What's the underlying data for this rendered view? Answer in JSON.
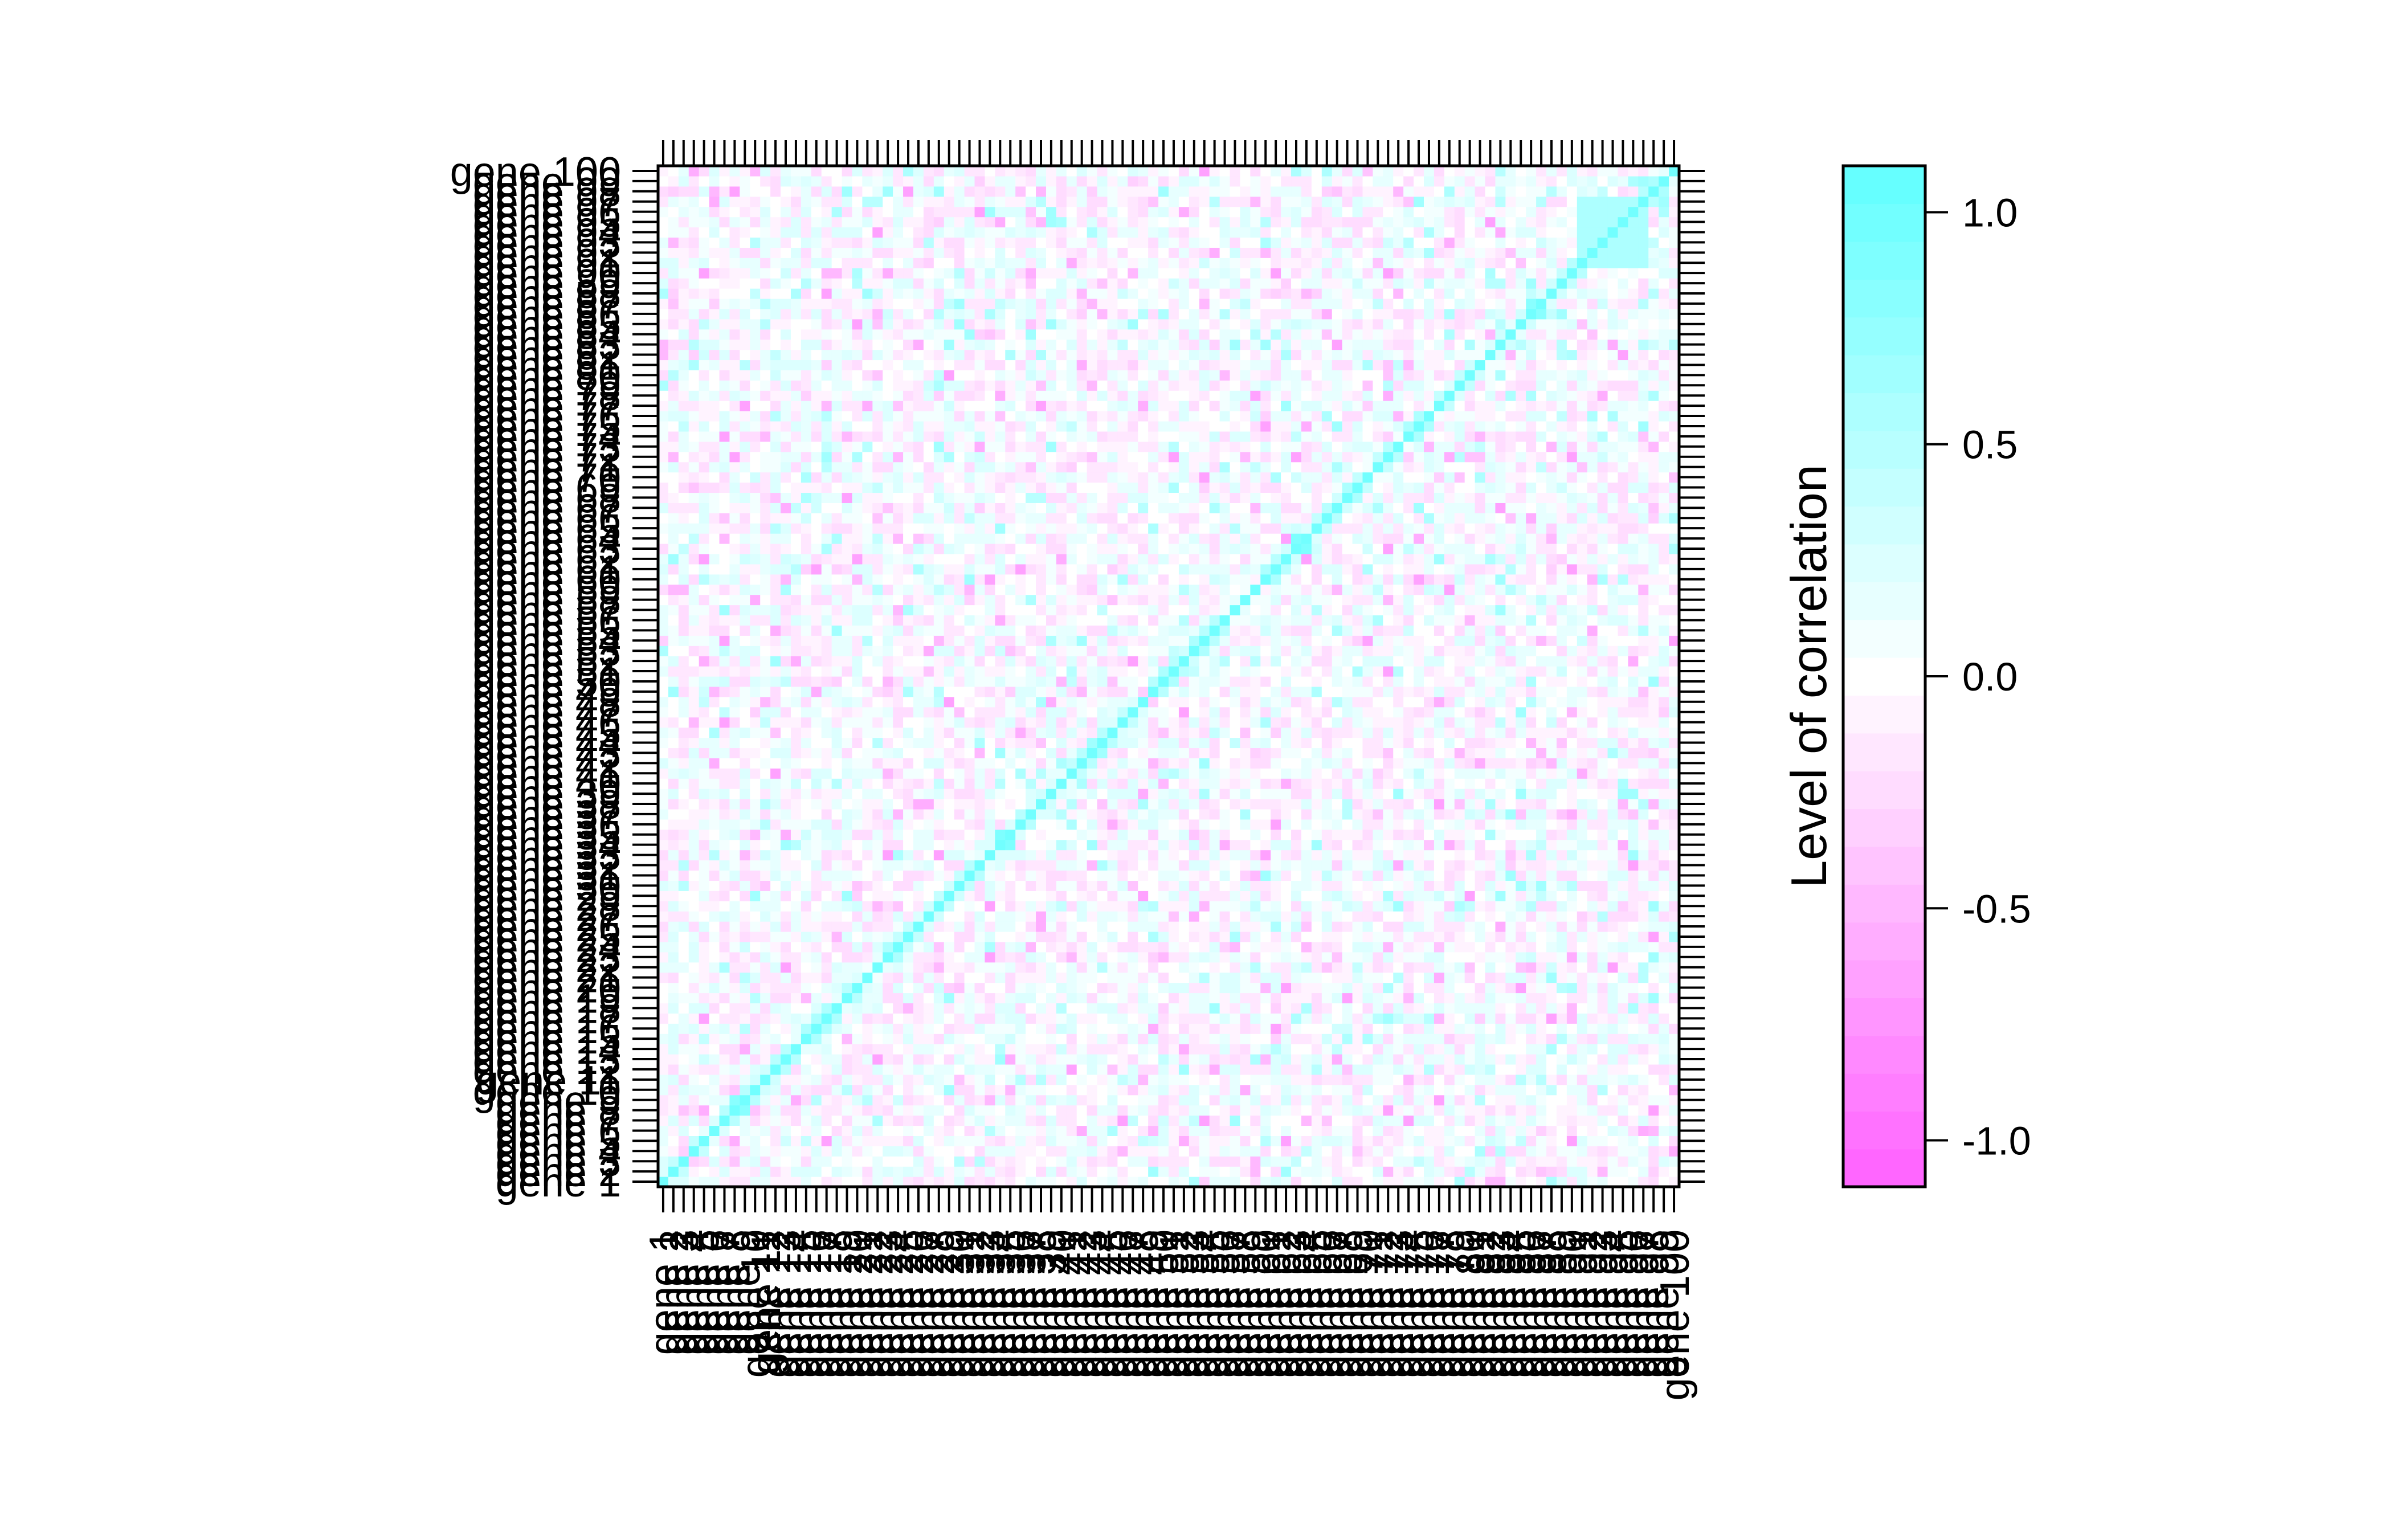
{
  "chart_data": {
    "type": "heatmap",
    "title": "",
    "xlabel": "",
    "ylabel": "",
    "n_genes": 100,
    "labels": [
      "gene 1",
      "gene 2",
      "gene 3",
      "gene 4",
      "gene 5",
      "gene 6",
      "gene 7",
      "gene 8",
      "gene 9",
      "gene 10",
      "gene 11",
      "gene 12",
      "gene 13",
      "gene 14",
      "gene 15",
      "gene 16",
      "gene 17",
      "gene 18",
      "gene 19",
      "gene 20",
      "gene 21",
      "gene 22",
      "gene 23",
      "gene 24",
      "gene 25",
      "gene 26",
      "gene 27",
      "gene 28",
      "gene 29",
      "gene 30",
      "gene 31",
      "gene 32",
      "gene 33",
      "gene 34",
      "gene 35",
      "gene 36",
      "gene 37",
      "gene 38",
      "gene 39",
      "gene 40",
      "gene 41",
      "gene 42",
      "gene 43",
      "gene 44",
      "gene 45",
      "gene 46",
      "gene 47",
      "gene 48",
      "gene 49",
      "gene 50",
      "gene 51",
      "gene 52",
      "gene 53",
      "gene 54",
      "gene 55",
      "gene 56",
      "gene 57",
      "gene 58",
      "gene 59",
      "gene 60",
      "gene 61",
      "gene 62",
      "gene 63",
      "gene 64",
      "gene 65",
      "gene 66",
      "gene 67",
      "gene 68",
      "gene 69",
      "gene 70",
      "gene 71",
      "gene 72",
      "gene 73",
      "gene 74",
      "gene 75",
      "gene 76",
      "gene 77",
      "gene 78",
      "gene 79",
      "gene 80",
      "gene 81",
      "gene 82",
      "gene 83",
      "gene 84",
      "gene 85",
      "gene 86",
      "gene 87",
      "gene 88",
      "gene 89",
      "gene 90",
      "gene 91",
      "gene 92",
      "gene 93",
      "gene 94",
      "gene 95",
      "gene 96",
      "gene 97",
      "gene 98",
      "gene 99",
      "gene 100"
    ],
    "diagonal_value": 1.0,
    "off_diagonal_range": [
      -0.8,
      0.8
    ],
    "notable_blocks": [
      {
        "rows": [
          90,
          96
        ],
        "cols": [
          90,
          96
        ],
        "value": 0.6
      }
    ],
    "colorkey": {
      "title": "Level of correlation",
      "range": [
        -1.1,
        1.1
      ],
      "ticks": [
        1.0,
        0.5,
        0.0,
        -0.5,
        -1.0
      ],
      "tick_labels": [
        "1.0",
        "0.5",
        "0.0",
        "-0.5",
        "-1.0"
      ],
      "color_low": "#FF66FF",
      "color_mid": "#FFFFFF",
      "color_high": "#66FFFF"
    },
    "grid": false,
    "legend_position": "right"
  }
}
